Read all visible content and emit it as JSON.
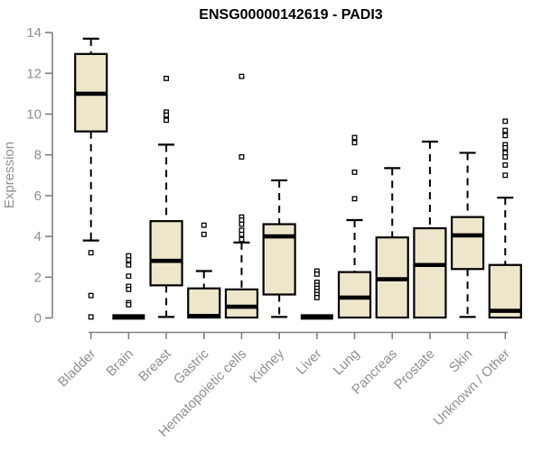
{
  "title": "ENSG00000142619 - PADI3",
  "colors": {
    "box_fill": "#EDE6CB",
    "box_stroke": "#000000",
    "median": "#000000",
    "axis_line": "#808080",
    "tick_text": "#8f8f8f",
    "title_text": "#000000",
    "outlier_fill": "#ffffff"
  },
  "chart_data": {
    "type": "boxplot",
    "title": "ENSG00000142619 - PADI3",
    "xlabel": "",
    "ylabel": "Expression",
    "ylim": [
      0,
      14
    ],
    "yticks": [
      0,
      2,
      4,
      6,
      8,
      10,
      12,
      14
    ],
    "grid": false,
    "categories": [
      "Bladder",
      "Brain",
      "Breast",
      "Gastric",
      "Hematopoietic cells",
      "Kidney",
      "Liver",
      "Lung",
      "Pancreas",
      "Prostate",
      "Skin",
      "Unknown / Other"
    ],
    "series": [
      {
        "name": "Bladder",
        "collapsed": false,
        "low": 3.8,
        "q1": 9.15,
        "median": 11.0,
        "q3": 12.95,
        "high": 13.7,
        "outliers": [
          3.2,
          1.1,
          0.05
        ]
      },
      {
        "name": "Brain",
        "collapsed": true,
        "median": 0.05,
        "outliers": [
          3.05,
          2.85,
          2.6,
          2.05,
          1.55,
          1.4,
          0.75,
          0.65
        ]
      },
      {
        "name": "Breast",
        "collapsed": false,
        "low": 0.05,
        "q1": 1.6,
        "median": 2.8,
        "q3": 4.75,
        "high": 8.5,
        "outliers": [
          11.75,
          10.1,
          9.95,
          9.7
        ]
      },
      {
        "name": "Gastric",
        "collapsed": false,
        "low": null,
        "q1": 0.02,
        "median": 0.1,
        "q3": 1.45,
        "high": 2.3,
        "outliers": [
          4.55,
          4.1
        ]
      },
      {
        "name": "Hematopoietic cells",
        "collapsed": false,
        "low": null,
        "q1": 0.02,
        "median": 0.55,
        "q3": 1.4,
        "high": 3.7,
        "outliers": [
          11.85,
          7.9,
          4.95,
          4.8,
          4.6,
          4.3,
          4.1,
          3.85
        ]
      },
      {
        "name": "Kidney",
        "collapsed": false,
        "low": 0.05,
        "q1": 1.15,
        "median": 4.0,
        "q3": 4.6,
        "high": 6.75,
        "outliers": []
      },
      {
        "name": "Liver",
        "collapsed": true,
        "median": 0.05,
        "outliers": [
          2.3,
          2.15,
          1.75,
          1.6,
          1.45,
          1.3,
          1.15,
          1.0
        ]
      },
      {
        "name": "Lung",
        "collapsed": false,
        "low": null,
        "q1": 0.02,
        "median": 1.0,
        "q3": 2.25,
        "high": 4.8,
        "outliers": [
          8.85,
          8.6,
          7.15,
          5.85
        ]
      },
      {
        "name": "Pancreas",
        "collapsed": false,
        "low": null,
        "q1": 0.02,
        "median": 1.9,
        "q3": 3.95,
        "high": 7.35,
        "outliers": []
      },
      {
        "name": "Prostate",
        "collapsed": false,
        "low": null,
        "q1": 0.02,
        "median": 2.6,
        "q3": 4.4,
        "high": 8.65,
        "outliers": []
      },
      {
        "name": "Skin",
        "collapsed": false,
        "low": 0.05,
        "q1": 2.4,
        "median": 4.05,
        "q3": 4.95,
        "high": 8.1,
        "outliers": []
      },
      {
        "name": "Unknown / Other",
        "collapsed": false,
        "low": null,
        "q1": 0.02,
        "median": 0.35,
        "q3": 2.6,
        "high": 5.9,
        "outliers": [
          9.65,
          9.2,
          8.95,
          8.5,
          8.35,
          8.1,
          7.9,
          7.5,
          7.0
        ]
      }
    ]
  }
}
